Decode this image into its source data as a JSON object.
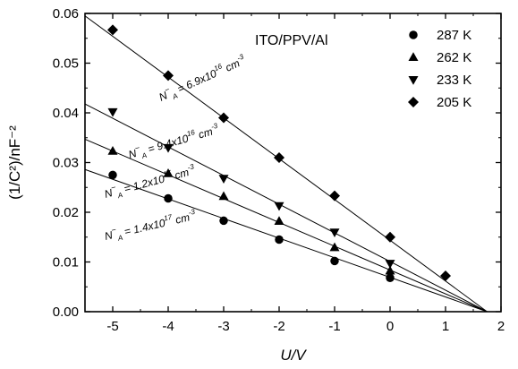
{
  "chart_data": {
    "type": "scatter",
    "title": "ITO/PPV/Al",
    "xlabel": "U/V",
    "ylabel": "(1/C²)/nF⁻²",
    "xlim": [
      -5.5,
      2.0
    ],
    "ylim": [
      0.0,
      0.06
    ],
    "x_ticks": [
      -5,
      -4,
      -3,
      -2,
      -1,
      0,
      1,
      2
    ],
    "x_tick_labels": [
      "-5",
      "-4",
      "-3",
      "-2",
      "-1",
      "0",
      "1",
      "2"
    ],
    "y_ticks": [
      0.0,
      0.01,
      0.02,
      0.03,
      0.04,
      0.05,
      0.06
    ],
    "y_tick_labels": [
      "0.00",
      "0.01",
      "0.02",
      "0.03",
      "0.04",
      "0.05",
      "0.06"
    ],
    "grid": false,
    "legend_position": "top-right",
    "series": [
      {
        "name": "287 K",
        "marker": "circle",
        "x": [
          -5,
          -4,
          -3,
          -2,
          -1,
          0
        ],
        "y": [
          0.0275,
          0.0228,
          0.0183,
          0.0145,
          0.0102,
          0.0068
        ],
        "fit": {
          "x": [
            -5.5,
            1.75
          ],
          "y": [
            0.0286,
            0.0
          ]
        },
        "annotation": {
          "text": "N",
          "sup": "−",
          "sub": "A",
          "value": " = 1.4x10",
          "exp": "17",
          "unit": " cm",
          "unit_exp": "-3"
        }
      },
      {
        "name": "262 K",
        "marker": "triangle-up",
        "x": [
          -5,
          -4,
          -3,
          -2,
          -1,
          0
        ],
        "y": [
          0.0323,
          0.0278,
          0.0232,
          0.0182,
          0.0129,
          0.0082
        ],
        "fit": {
          "x": [
            -5.5,
            1.75
          ],
          "y": [
            0.0347,
            0.0
          ]
        },
        "annotation": {
          "text": "N",
          "sup": "−",
          "sub": "A",
          "value": " = 1.2x10",
          "exp": "17",
          "unit": " cm",
          "unit_exp": "-3"
        }
      },
      {
        "name": "233 K",
        "marker": "triangle-down",
        "x": [
          -5,
          -4,
          -3,
          -2,
          -1,
          0
        ],
        "y": [
          0.0402,
          0.033,
          0.0268,
          0.0213,
          0.016,
          0.0097
        ],
        "fit": {
          "x": [
            -5.5,
            1.75
          ],
          "y": [
            0.0418,
            0.0
          ]
        },
        "annotation": {
          "text": "N",
          "sup": "−",
          "sub": "A",
          "value": " = 9.4x10",
          "exp": "16",
          "unit": " cm",
          "unit_exp": "-3"
        }
      },
      {
        "name": "205 K",
        "marker": "diamond",
        "x": [
          -5,
          -4,
          -3,
          -2,
          -1,
          0,
          1
        ],
        "y": [
          0.0567,
          0.0475,
          0.039,
          0.031,
          0.0233,
          0.015,
          0.0072
        ],
        "fit": {
          "x": [
            -5.5,
            1.75
          ],
          "y": [
            0.0595,
            0.0
          ]
        },
        "annotation": {
          "text": "N",
          "sup": "−",
          "sub": "A",
          "value": " = 6.9x10",
          "exp": "16",
          "unit": " cm",
          "unit_exp": "-3"
        }
      }
    ]
  }
}
